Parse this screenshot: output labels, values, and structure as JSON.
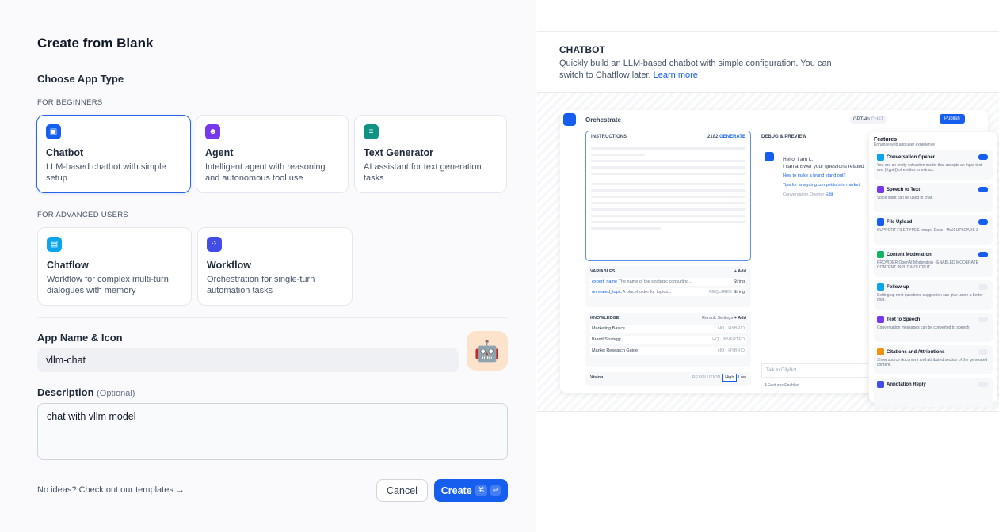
{
  "title": "Create from Blank",
  "choose_label": "Choose App Type",
  "beginners_label": "FOR BEGINNERS",
  "advanced_label": "FOR ADVANCED USERS",
  "app_types": [
    {
      "name": "Chatbot",
      "desc": "LLM-based chatbot with simple setup",
      "color": "#155eef",
      "selected": true
    },
    {
      "name": "Agent",
      "desc": "Intelligent agent with reasoning and autonomous tool use",
      "color": "#7839ee"
    },
    {
      "name": "Text Generator",
      "desc": "AI assistant for text generation tasks",
      "color": "#0e9384"
    },
    {
      "name": "Chatflow",
      "desc": "Workflow for complex multi-turn dialogues with memory",
      "color": "#0ba5ec"
    },
    {
      "name": "Workflow",
      "desc": "Orchestration for single-turn automation tasks",
      "color": "#444ce7"
    }
  ],
  "app_name_label": "App Name & Icon",
  "app_name_value": "vllm-chat",
  "app_icon": "🤖",
  "description_label": "Description",
  "description_optional": "(Optional)",
  "description_value": "chat with vllm model",
  "templates_link": "No ideas? Check out our templates",
  "arrow": "→",
  "cancel": "Cancel",
  "create": "Create",
  "create_kbd": [
    "⌘",
    "↵"
  ],
  "preview": {
    "title": "CHATBOT",
    "desc": "Quickly build an LLM-based chatbot with simple configuration. You can switch to Chatflow later.",
    "learn_more": "Learn more",
    "orchestrate": "Orchestrate",
    "model": "GPT-4o",
    "model_mode": "CHAT",
    "publish": "Publish",
    "instructions": "INSTRUCTIONS",
    "instr_count": "2182",
    "generate": "GENERATE",
    "debug": "DEBUG & PREVIEW",
    "hello": "Hello, I am L.",
    "answer": "I can answer your questions related",
    "q1": "How to make a brand stand out?",
    "q2": "Tips for analyzing competitors in market",
    "opener": "Conversation Opener",
    "edit": "Edit",
    "variables": "VARIABLES",
    "add": "+ Add",
    "vars": [
      {
        "name": "expert_name",
        "desc": "The name of the strategic consulting...",
        "type": "String"
      },
      {
        "name": "unrelated_topic",
        "desc": "A placeholder for topics...",
        "type": "String",
        "req": "REQUIRED"
      }
    ],
    "knowledge": "KNOWLEDGE",
    "rerank": "Rerank Settings",
    "kbs": [
      {
        "name": "Marketing Basics",
        "tag": "HQ · HYBRID"
      },
      {
        "name": "Brand Strategy",
        "tag": "HQ · INVERTED"
      },
      {
        "name": "Market Research Guide",
        "tag": "HQ · HYBRID"
      }
    ],
    "vision": "Vision",
    "resolution": "RESOLUTION",
    "high": "High",
    "low": "Low",
    "talk": "Talk to DifyBot",
    "features_enabled": "4 Features Enabled",
    "features_title": "Features",
    "features_sub": "Enhance web app user experience",
    "features": [
      {
        "name": "Conversation Opener",
        "desc": "You are an entity extraction model that accepts an input text and {{type}} of entities to extract.",
        "on": true,
        "color": "#0ba5ec"
      },
      {
        "name": "Speech to Text",
        "desc": "Voice input can be used in chat.",
        "on": true,
        "color": "#7839ee"
      },
      {
        "name": "File Upload",
        "desc": "SUPPORT FILE TYPES Image, Docs · MAX UPLOADS 3",
        "on": true,
        "color": "#155eef"
      },
      {
        "name": "Content Moderation",
        "desc": "PROVIDER OpenAI Moderation · ENABLED MODERATE CONTENT INPUT & OUTPUT",
        "on": true,
        "color": "#16b364"
      },
      {
        "name": "Follow-up",
        "desc": "Setting up next questions suggestion can give users a better chat.",
        "on": false,
        "color": "#0ba5ec"
      },
      {
        "name": "Text to Speech",
        "desc": "Conversation messages can be converted to speech.",
        "on": false,
        "color": "#7839ee"
      },
      {
        "name": "Citations and Attributions",
        "desc": "Show source document and attributed section of the generated content.",
        "on": false,
        "color": "#f79009"
      },
      {
        "name": "Annotation Reply",
        "desc": "",
        "on": false,
        "color": "#444ce7"
      }
    ]
  }
}
